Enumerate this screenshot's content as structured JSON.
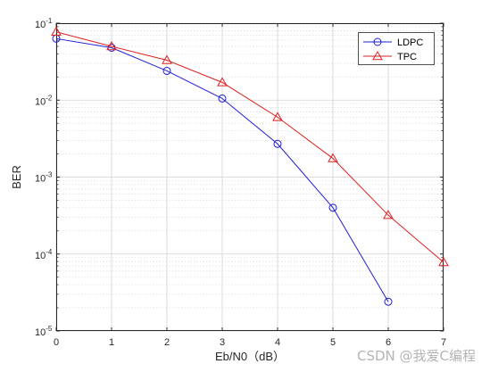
{
  "chart_data": {
    "type": "line",
    "xlabel": "Eb/N0（dB）",
    "ylabel": "BER",
    "xlim": [
      0,
      7
    ],
    "ylim": [
      1e-05,
      0.1
    ],
    "yscale": "log",
    "xticks": [
      0,
      1,
      2,
      3,
      4,
      5,
      6,
      7
    ],
    "yticks": [
      {
        "value": 1e-05,
        "base": "10",
        "exp": "-5"
      },
      {
        "value": 0.0001,
        "base": "10",
        "exp": "-4"
      },
      {
        "value": 0.001,
        "base": "10",
        "exp": "-3"
      },
      {
        "value": 0.01,
        "base": "10",
        "exp": "-2"
      },
      {
        "value": 0.1,
        "base": "10",
        "exp": "-1"
      }
    ],
    "grid": true,
    "legend_position": "top-right",
    "series": [
      {
        "name": "LDPC",
        "color": "#1f1fd6",
        "marker": "circle",
        "x": [
          0,
          1,
          2,
          3,
          4,
          5,
          6
        ],
        "y": [
          0.063,
          0.048,
          0.024,
          0.0105,
          0.0027,
          0.0004,
          2.4e-05
        ]
      },
      {
        "name": "TPC",
        "color": "#dd2222",
        "marker": "triangle",
        "x": [
          0,
          1,
          2,
          3,
          4,
          5,
          6,
          7
        ],
        "y": [
          0.077,
          0.05,
          0.033,
          0.017,
          0.006,
          0.00175,
          0.00032,
          7.8e-05
        ]
      }
    ]
  },
  "watermark": "CSDN @我爱C编程"
}
